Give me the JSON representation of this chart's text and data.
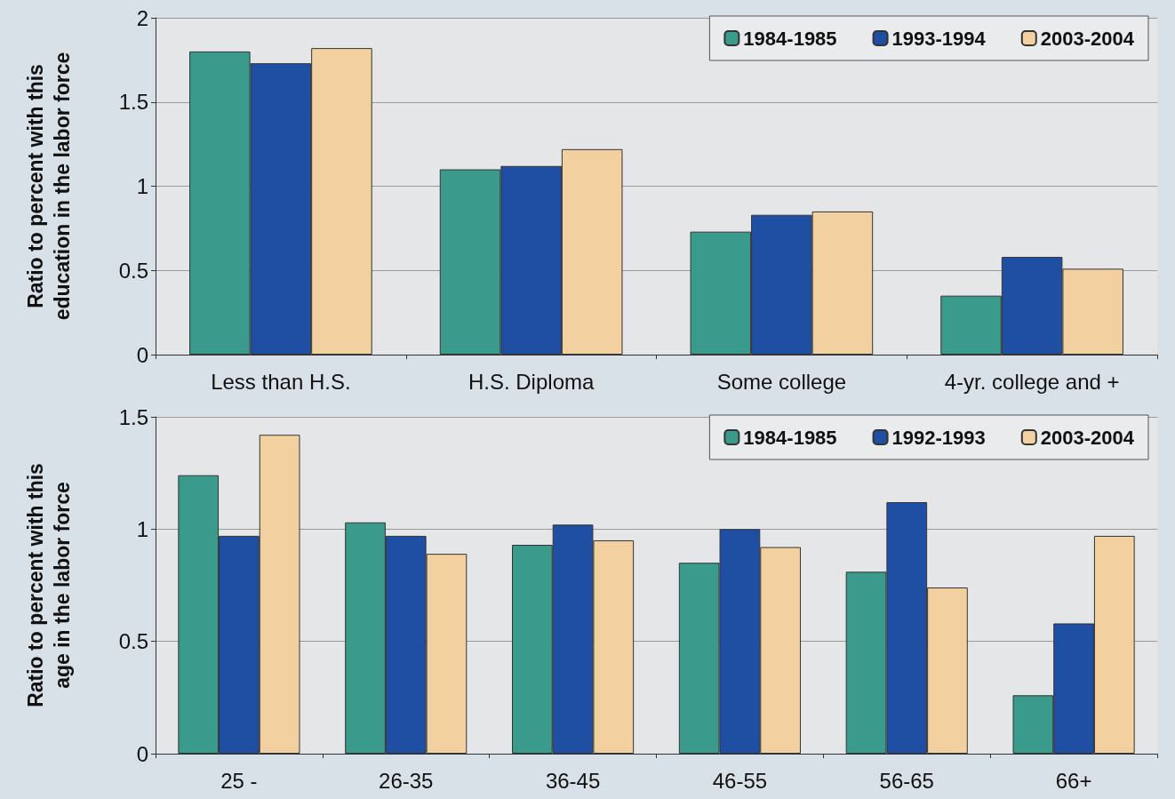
{
  "chart_data": [
    {
      "type": "bar",
      "ylabel": "Ratio to percent with this\neducation in the labor force",
      "categories": [
        "Less than H.S.",
        "H.S. Diploma",
        "Some college",
        "4-yr. college and +"
      ],
      "series": [
        {
          "name": "1984-1985",
          "color": "#3a9a8c",
          "values": [
            1.8,
            1.1,
            0.73,
            0.35
          ]
        },
        {
          "name": "1993-1994",
          "color": "#1f4fa3",
          "values": [
            1.73,
            1.12,
            0.83,
            0.58
          ]
        },
        {
          "name": "2003-2004",
          "color": "#f2d0a0",
          "values": [
            1.82,
            1.22,
            0.85,
            0.51
          ]
        }
      ],
      "ylim": [
        0,
        2
      ],
      "yticks": [
        0,
        0.5,
        1,
        1.5,
        2
      ],
      "grid": "y",
      "legend": "top right"
    },
    {
      "type": "bar",
      "ylabel": "Ratio to percent with this\nage in the labor force",
      "categories": [
        "25 -",
        "26-35",
        "36-45",
        "46-55",
        "56-65",
        "66+"
      ],
      "series": [
        {
          "name": "1984-1985",
          "color": "#3a9a8c",
          "values": [
            1.24,
            1.03,
            0.93,
            0.85,
            0.81,
            0.26
          ]
        },
        {
          "name": "1992-1993",
          "color": "#1f4fa3",
          "values": [
            0.97,
            0.97,
            1.02,
            1.0,
            1.12,
            0.58
          ]
        },
        {
          "name": "2003-2004",
          "color": "#f2d0a0",
          "values": [
            1.42,
            0.89,
            0.95,
            0.92,
            0.74,
            0.97
          ]
        }
      ],
      "ylim": [
        0,
        1.5
      ],
      "yticks": [
        0,
        0.5,
        1,
        1.5
      ],
      "grid": "y",
      "legend": "top right"
    }
  ]
}
